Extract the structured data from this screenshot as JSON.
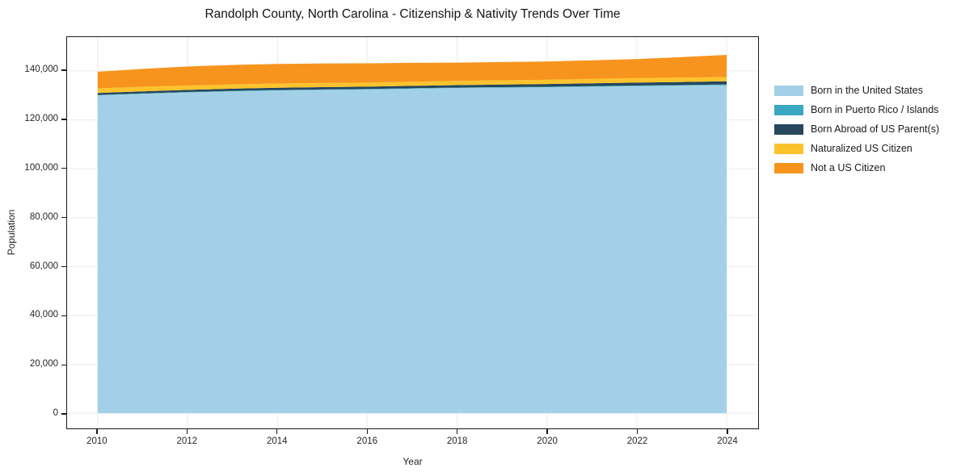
{
  "chart": {
    "title": "Randolph County, North Carolina - Citizenship & Nativity Trends Over Time",
    "xlabel": "Year",
    "ylabel": "Population"
  },
  "chart_data": {
    "type": "area",
    "stacked": true,
    "title": "Randolph County, North Carolina - Citizenship & Nativity Trends Over Time",
    "xlabel": "Year",
    "ylabel": "Population",
    "legend_position": "right",
    "grid": true,
    "xlim": [
      2009.32,
      2024.7
    ],
    "ylim": [
      -6200,
      153800
    ],
    "x": [
      2010,
      2011,
      2012,
      2013,
      2014,
      2015,
      2016,
      2017,
      2018,
      2019,
      2020,
      2021,
      2022,
      2023,
      2024
    ],
    "xticks": [
      2010,
      2012,
      2014,
      2016,
      2018,
      2020,
      2022,
      2024
    ],
    "xtick_labels": [
      "2010",
      "2012",
      "2014",
      "2016",
      "2018",
      "2020",
      "2022",
      "2024"
    ],
    "yticks": [
      0,
      20000,
      40000,
      60000,
      80000,
      100000,
      120000,
      140000
    ],
    "ytick_labels": [
      "0",
      "20,000",
      "40,000",
      "60,000",
      "80,000",
      "100,000",
      "120,000",
      "140,000"
    ],
    "series": [
      {
        "name": "Born in the United States",
        "color": "#a2d1e7",
        "values": [
          130000,
          130650,
          131200,
          131650,
          132000,
          132200,
          132400,
          132700,
          133000,
          133150,
          133300,
          133550,
          133800,
          134000,
          134200
        ]
      },
      {
        "name": "Born in Puerto Rico / Islands",
        "color": "#3aa8c1",
        "values": [
          150,
          160,
          170,
          180,
          190,
          195,
          200,
          200,
          200,
          210,
          210,
          220,
          220,
          230,
          240
        ]
      },
      {
        "name": "Born Abroad of US Parent(s)",
        "color": "#26475c",
        "values": [
          800,
          820,
          850,
          870,
          900,
          930,
          950,
          980,
          1000,
          1050,
          1100,
          1150,
          1200,
          1250,
          1300
        ]
      },
      {
        "name": "Naturalized US Citizen",
        "color": "#fcc32d",
        "values": [
          1900,
          1850,
          1800,
          1750,
          1750,
          1700,
          1650,
          1700,
          1700,
          1750,
          1750,
          1800,
          1850,
          1800,
          1700
        ]
      },
      {
        "name": "Not a US Citizen",
        "color": "#f7941e",
        "values": [
          6800,
          7300,
          7800,
          7950,
          8000,
          8000,
          7900,
          7700,
          7500,
          7450,
          7450,
          7600,
          7750,
          8350,
          9100
        ]
      }
    ],
    "colors": {
      "grid": "#ececec",
      "frame": "#1a1a1a",
      "text": "#262626"
    }
  }
}
